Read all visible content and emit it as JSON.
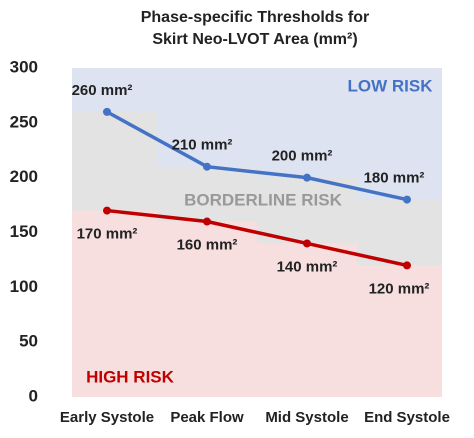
{
  "chart_data": {
    "type": "line",
    "title": [
      "Phase-specific Thresholds for",
      "Skirt Neo-LVOT Area (mm²)"
    ],
    "categories": [
      "Early Systole",
      "Peak Flow",
      "Mid Systole",
      "End Systole"
    ],
    "series": [
      {
        "name": "Low risk threshold",
        "color": "#4472c4",
        "region_color": "#dde3f0",
        "values": [
          260,
          210,
          200,
          180
        ],
        "value_labels": [
          "260 mm²",
          "210 mm²",
          "200 mm²",
          "180 mm²"
        ]
      },
      {
        "name": "High risk threshold",
        "color": "#c00000",
        "region_color": "#f7dfdf",
        "values": [
          170,
          160,
          140,
          120
        ],
        "value_labels": [
          "170 mm²",
          "160 mm²",
          "140 mm²",
          "120 mm²"
        ]
      }
    ],
    "annotations": [
      {
        "text": "LOW RISK",
        "color": "#4472c4"
      },
      {
        "text": "BORDERLINE RISK",
        "color": "#999999"
      },
      {
        "text": "HIGH RISK",
        "color": "#c00000"
      }
    ],
    "between_color": "#e3e3e3",
    "ylim": [
      0,
      300
    ],
    "yticks": [
      0,
      50,
      100,
      150,
      200,
      250,
      300
    ]
  }
}
